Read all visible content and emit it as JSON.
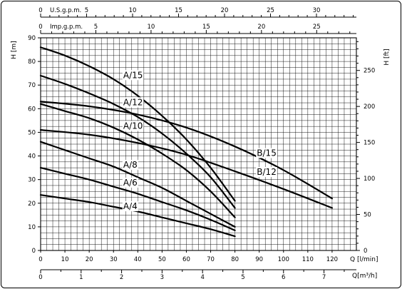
{
  "chart_data": {
    "type": "line",
    "title": "",
    "x": {
      "label_main": "Q [l/min]",
      "range": [
        0,
        130
      ],
      "ticks": [
        0,
        10,
        20,
        30,
        40,
        50,
        60,
        70,
        80,
        90,
        100,
        110,
        120
      ]
    },
    "x_m3h": {
      "label": "Q[m³/h]",
      "ticks": [
        0,
        1,
        2,
        3,
        4,
        5,
        6,
        7
      ]
    },
    "x_usgpm": {
      "label": "U.S.g.p.m.",
      "ticks": [
        0,
        5,
        10,
        15,
        20,
        25,
        30
      ]
    },
    "x_impgpm": {
      "label": "Imp.g.p.m.",
      "ticks": [
        0,
        5,
        10,
        15,
        20,
        25
      ]
    },
    "y": {
      "label": "H [m]",
      "range": [
        0,
        90
      ],
      "ticks": [
        0,
        10,
        20,
        30,
        40,
        50,
        60,
        70,
        80,
        90
      ]
    },
    "y_ft": {
      "label": "H [ft]",
      "ticks": [
        0,
        50,
        100,
        150,
        200,
        250
      ]
    },
    "grid": true,
    "series": [
      {
        "name": "A/15",
        "label_at": [
          34,
          73
        ],
        "points": [
          [
            0,
            86
          ],
          [
            10,
            82.5
          ],
          [
            20,
            78
          ],
          [
            30,
            72.5
          ],
          [
            40,
            65.5
          ],
          [
            50,
            57
          ],
          [
            60,
            47
          ],
          [
            70,
            35
          ],
          [
            80,
            21
          ]
        ]
      },
      {
        "name": "A/12",
        "label_at": [
          34,
          61.5
        ],
        "points": [
          [
            0,
            74
          ],
          [
            10,
            70.5
          ],
          [
            20,
            66.5
          ],
          [
            30,
            62
          ],
          [
            40,
            56.5
          ],
          [
            50,
            49.5
          ],
          [
            60,
            41
          ],
          [
            70,
            31
          ],
          [
            80,
            18
          ]
        ]
      },
      {
        "name": "A/10",
        "label_at": [
          34,
          51.5
        ],
        "points": [
          [
            0,
            62
          ],
          [
            10,
            59
          ],
          [
            20,
            56
          ],
          [
            30,
            52
          ],
          [
            40,
            47
          ],
          [
            50,
            41
          ],
          [
            60,
            34
          ],
          [
            70,
            25
          ],
          [
            80,
            14
          ]
        ]
      },
      {
        "name": "A/8",
        "label_at": [
          34,
          35
        ],
        "points": [
          [
            0,
            46
          ],
          [
            10,
            42.5
          ],
          [
            20,
            39
          ],
          [
            30,
            35.5
          ],
          [
            40,
            31
          ],
          [
            50,
            26.5
          ],
          [
            60,
            21
          ],
          [
            70,
            15.5
          ],
          [
            80,
            10
          ]
        ]
      },
      {
        "name": "A/6",
        "label_at": [
          34,
          27.5
        ],
        "points": [
          [
            0,
            35
          ],
          [
            10,
            32.5
          ],
          [
            20,
            30
          ],
          [
            30,
            27
          ],
          [
            40,
            24
          ],
          [
            50,
            20.5
          ],
          [
            60,
            17
          ],
          [
            70,
            13
          ],
          [
            80,
            8.5
          ]
        ]
      },
      {
        "name": "A/4",
        "label_at": [
          34,
          17.5
        ],
        "points": [
          [
            0,
            23.5
          ],
          [
            10,
            22
          ],
          [
            20,
            20.5
          ],
          [
            30,
            18.5
          ],
          [
            40,
            16.5
          ],
          [
            50,
            14
          ],
          [
            60,
            11.5
          ],
          [
            70,
            9
          ],
          [
            80,
            6
          ]
        ]
      },
      {
        "name": "B/15",
        "label_at": [
          89,
          40
        ],
        "points": [
          [
            0,
            63
          ],
          [
            20,
            61
          ],
          [
            40,
            57.5
          ],
          [
            60,
            52
          ],
          [
            80,
            44
          ],
          [
            100,
            34
          ],
          [
            120,
            22
          ]
        ]
      },
      {
        "name": "B/12",
        "label_at": [
          89,
          32
        ],
        "points": [
          [
            0,
            51
          ],
          [
            20,
            49
          ],
          [
            40,
            45.5
          ],
          [
            60,
            40.5
          ],
          [
            80,
            33.5
          ],
          [
            100,
            26
          ],
          [
            120,
            18
          ]
        ]
      }
    ]
  }
}
